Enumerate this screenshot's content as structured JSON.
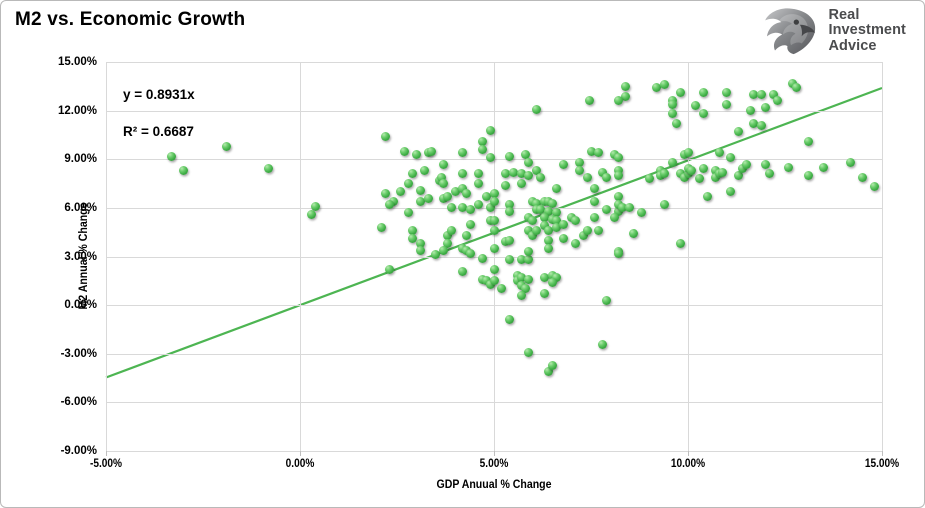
{
  "header": {
    "title": "M2 vs. Economic Growth"
  },
  "logo": {
    "icon": "eagle-shield-icon",
    "lines": [
      "Real",
      "Investment",
      "Advice"
    ],
    "text_color": "#4b4c4e",
    "icon_gradient": [
      "#c6c7c9",
      "#87898c",
      "#55565a"
    ]
  },
  "colors": {
    "marker_fill": "#3fae46",
    "marker_highlight": "#b5e9ae",
    "marker_edge": "#2b8432",
    "trendline": "#4db552",
    "gridline": "#d9d9d9",
    "text": "#000000",
    "background": "#ffffff",
    "frame_border": "#b9b9b9"
  },
  "chart_data": {
    "type": "scatter",
    "title": "M2 vs. Economic Growth",
    "xlabel": "GDP Anuual % Change",
    "ylabel": "M2 Annual % Change",
    "xlim": [
      -5,
      15
    ],
    "ylim": [
      -9,
      15
    ],
    "x_ticks": [
      -5,
      0,
      5,
      10,
      15
    ],
    "x_tick_labels": [
      "-5.00%",
      "0.00%",
      "5.00%",
      "10.00%",
      "15.00%"
    ],
    "y_ticks": [
      15,
      12,
      9,
      6,
      3,
      0,
      -3,
      -6,
      -9
    ],
    "y_tick_labels": [
      "15.00%",
      "12.00%",
      "9.00%",
      "6.00%",
      "3.00%",
      "0.00%",
      "-3.00%",
      "-6.00%",
      "-9.00%"
    ],
    "grid": true,
    "legend": false,
    "annotation": {
      "line1": "y = 0.8931x",
      "line2": "R² = 0.6687"
    },
    "trendline": {
      "slope": 0.8931,
      "intercept": 0,
      "x_start": -5,
      "x_end": 15
    },
    "units": "percent",
    "points": [
      [
        -3.3,
        9.2
      ],
      [
        -3.0,
        8.3
      ],
      [
        -1.9,
        9.8
      ],
      [
        -0.8,
        8.4
      ],
      [
        0.4,
        6.1
      ],
      [
        0.3,
        5.6
      ],
      [
        2.2,
        10.4
      ],
      [
        2.7,
        9.5
      ],
      [
        3.0,
        9.3
      ],
      [
        2.2,
        6.9
      ],
      [
        2.4,
        6.4
      ],
      [
        2.3,
        6.2
      ],
      [
        2.1,
        4.8
      ],
      [
        2.8,
        7.5
      ],
      [
        2.6,
        7.0
      ],
      [
        2.8,
        5.7
      ],
      [
        2.9,
        4.6
      ],
      [
        2.9,
        4.1
      ],
      [
        2.9,
        8.1
      ],
      [
        2.3,
        2.2
      ],
      [
        3.3,
        9.4
      ],
      [
        3.4,
        9.5
      ],
      [
        3.1,
        7.1
      ],
      [
        3.2,
        8.3
      ],
      [
        3.1,
        6.4
      ],
      [
        3.3,
        6.6
      ],
      [
        3.1,
        3.8
      ],
      [
        3.7,
        8.7
      ],
      [
        3.6,
        7.7
      ],
      [
        3.65,
        7.85
      ],
      [
        3.7,
        7.5
      ],
      [
        3.7,
        6.6
      ],
      [
        3.8,
        6.7
      ],
      [
        3.8,
        4.3
      ],
      [
        3.9,
        4.6
      ],
      [
        3.8,
        3.8
      ],
      [
        3.9,
        6.0
      ],
      [
        4.0,
        7.0
      ],
      [
        3.1,
        3.4
      ],
      [
        3.5,
        3.1
      ],
      [
        3.7,
        3.4
      ],
      [
        4.2,
        9.4
      ],
      [
        4.2,
        7.2
      ],
      [
        4.2,
        8.1
      ],
      [
        4.3,
        6.9
      ],
      [
        4.2,
        6.0
      ],
      [
        4.4,
        5.9
      ],
      [
        4.4,
        5.0
      ],
      [
        4.3,
        4.3
      ],
      [
        4.7,
        10.1
      ],
      [
        4.7,
        9.6
      ],
      [
        4.9,
        10.8
      ],
      [
        4.9,
        9.1
      ],
      [
        4.6,
        8.1
      ],
      [
        4.6,
        7.5
      ],
      [
        4.8,
        6.7
      ],
      [
        4.6,
        6.2
      ],
      [
        4.9,
        6.0
      ],
      [
        4.9,
        5.2
      ],
      [
        4.2,
        3.5
      ],
      [
        4.3,
        3.4
      ],
      [
        4.4,
        3.2
      ],
      [
        4.2,
        2.1
      ],
      [
        4.7,
        2.9
      ],
      [
        4.7,
        1.6
      ],
      [
        4.8,
        1.5
      ],
      [
        4.9,
        1.3
      ],
      [
        5.4,
        9.2
      ],
      [
        5.8,
        9.3
      ],
      [
        5.9,
        8.8
      ],
      [
        5.3,
        8.1
      ],
      [
        5.5,
        8.2
      ],
      [
        5.7,
        8.1
      ],
      [
        5.9,
        8.0
      ],
      [
        5.3,
        7.4
      ],
      [
        5.7,
        7.5
      ],
      [
        6.1,
        12.1
      ],
      [
        5.0,
        6.9
      ],
      [
        5.0,
        6.4
      ],
      [
        5.4,
        6.2
      ],
      [
        5.4,
        5.8
      ],
      [
        5.9,
        5.4
      ],
      [
        6.0,
        5.2
      ],
      [
        5.9,
        4.6
      ],
      [
        6.0,
        4.3
      ],
      [
        5.3,
        3.9
      ],
      [
        5.4,
        4.0
      ],
      [
        5.0,
        5.2
      ],
      [
        5.0,
        4.6
      ],
      [
        5.0,
        3.5
      ],
      [
        5.4,
        2.8
      ],
      [
        5.7,
        2.8
      ],
      [
        5.9,
        2.8
      ],
      [
        5.9,
        3.3
      ],
      [
        5.0,
        2.2
      ],
      [
        5.0,
        1.5
      ],
      [
        5.2,
        1.0
      ],
      [
        5.6,
        1.8
      ],
      [
        5.6,
        1.5
      ],
      [
        5.7,
        1.7
      ],
      [
        5.9,
        1.6
      ],
      [
        5.7,
        1.2
      ],
      [
        5.8,
        1.0
      ],
      [
        5.7,
        0.6
      ],
      [
        5.4,
        -0.9
      ],
      [
        5.9,
        -2.9
      ],
      [
        6.1,
        8.3
      ],
      [
        6.2,
        7.9
      ],
      [
        6.6,
        7.2
      ],
      [
        6.8,
        8.7
      ],
      [
        6.0,
        6.4
      ],
      [
        6.1,
        6.3
      ],
      [
        6.3,
        6.4
      ],
      [
        6.1,
        5.9
      ],
      [
        6.2,
        5.9
      ],
      [
        6.4,
        6.4
      ],
      [
        6.5,
        6.3
      ],
      [
        6.4,
        5.8
      ],
      [
        6.6,
        5.7
      ],
      [
        6.3,
        5.4
      ],
      [
        6.5,
        5.3
      ],
      [
        6.6,
        5.2
      ],
      [
        6.3,
        4.9
      ],
      [
        6.1,
        4.6
      ],
      [
        6.4,
        4.6
      ],
      [
        6.6,
        4.8
      ],
      [
        6.8,
        5.0
      ],
      [
        6.4,
        4.0
      ],
      [
        6.8,
        4.1
      ],
      [
        6.4,
        3.5
      ],
      [
        6.3,
        1.7
      ],
      [
        6.5,
        1.8
      ],
      [
        6.6,
        1.7
      ],
      [
        6.5,
        1.4
      ],
      [
        6.3,
        0.7
      ],
      [
        6.4,
        -4.1
      ],
      [
        6.5,
        -3.7
      ],
      [
        7.2,
        8.8
      ],
      [
        7.2,
        8.3
      ],
      [
        7.5,
        9.5
      ],
      [
        7.7,
        9.4
      ],
      [
        7.4,
        7.9
      ],
      [
        7.8,
        8.2
      ],
      [
        7.9,
        7.9
      ],
      [
        7.6,
        7.2
      ],
      [
        7.0,
        5.4
      ],
      [
        7.1,
        5.2
      ],
      [
        7.6,
        6.4
      ],
      [
        7.6,
        5.4
      ],
      [
        7.9,
        5.9
      ],
      [
        7.3,
        4.3
      ],
      [
        7.4,
        4.6
      ],
      [
        7.1,
        3.8
      ],
      [
        7.7,
        4.6
      ],
      [
        7.45,
        12.6
      ],
      [
        7.9,
        0.3
      ],
      [
        7.8,
        -2.4
      ],
      [
        8.2,
        5.8
      ],
      [
        8.1,
        5.4
      ],
      [
        8.2,
        8.3
      ],
      [
        8.1,
        9.3
      ],
      [
        8.2,
        3.3
      ],
      [
        8.4,
        13.5
      ],
      [
        8.4,
        12.9
      ],
      [
        8.2,
        12.6
      ],
      [
        8.2,
        9.1
      ],
      [
        8.2,
        8.0
      ],
      [
        8.2,
        6.7
      ],
      [
        8.2,
        6.2
      ],
      [
        8.3,
        6.0
      ],
      [
        8.5,
        6.0
      ],
      [
        8.8,
        5.7
      ],
      [
        8.6,
        4.4
      ],
      [
        8.2,
        3.2
      ],
      [
        9.2,
        13.4
      ],
      [
        9.4,
        13.6
      ],
      [
        9.8,
        13.1
      ],
      [
        9.6,
        12.6
      ],
      [
        9.6,
        12.4
      ],
      [
        9.6,
        11.8
      ],
      [
        9.7,
        11.2
      ],
      [
        9.0,
        7.8
      ],
      [
        9.3,
        8.3
      ],
      [
        9.3,
        8.0
      ],
      [
        9.4,
        8.1
      ],
      [
        9.6,
        8.8
      ],
      [
        9.9,
        9.3
      ],
      [
        10.0,
        9.4
      ],
      [
        9.8,
        8.1
      ],
      [
        9.9,
        7.9
      ],
      [
        9.4,
        6.2
      ],
      [
        9.8,
        3.8
      ],
      [
        10.4,
        13.1
      ],
      [
        10.2,
        12.3
      ],
      [
        10.4,
        11.8
      ],
      [
        10.0,
        8.1
      ],
      [
        10.0,
        8.4
      ],
      [
        10.1,
        8.3
      ],
      [
        10.3,
        7.8
      ],
      [
        10.4,
        8.4
      ],
      [
        10.5,
        6.7
      ],
      [
        10.7,
        8.3
      ],
      [
        10.8,
        9.4
      ],
      [
        10.7,
        7.9
      ],
      [
        10.8,
        8.1
      ],
      [
        10.9,
        8.2
      ],
      [
        11.0,
        13.1
      ],
      [
        11.0,
        12.4
      ],
      [
        11.3,
        10.7
      ],
      [
        11.6,
        12.0
      ],
      [
        11.7,
        13.0
      ],
      [
        11.1,
        9.1
      ],
      [
        11.1,
        7.0
      ],
      [
        11.3,
        8.0
      ],
      [
        11.4,
        8.4
      ],
      [
        11.5,
        8.7
      ],
      [
        11.7,
        11.2
      ],
      [
        11.9,
        13.0
      ],
      [
        11.9,
        11.1
      ],
      [
        12.0,
        12.2
      ],
      [
        12.7,
        13.7
      ],
      [
        12.8,
        13.4
      ],
      [
        12.2,
        13.0
      ],
      [
        12.3,
        12.6
      ],
      [
        13.1,
        10.1
      ],
      [
        12.0,
        8.7
      ],
      [
        12.1,
        8.1
      ],
      [
        12.6,
        8.5
      ],
      [
        13.1,
        8.0
      ],
      [
        13.5,
        8.5
      ],
      [
        14.2,
        8.8
      ],
      [
        14.5,
        7.9
      ],
      [
        14.8,
        7.3
      ]
    ]
  }
}
